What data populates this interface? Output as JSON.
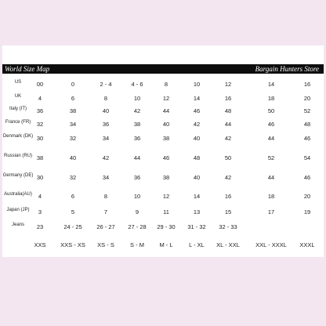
{
  "chart_data": {
    "type": "table",
    "header": {
      "left": "World Size Map",
      "right": "Bargain Hunters Store"
    },
    "rows": [
      {
        "label": "US",
        "values": [
          "00",
          "0",
          "2 - 4",
          "4 - 6",
          "8",
          "10",
          "12",
          "14",
          "16"
        ]
      },
      {
        "label": "UK",
        "values": [
          "4",
          "6",
          "8",
          "10",
          "12",
          "14",
          "16",
          "18",
          "20"
        ]
      },
      {
        "label": "Italy (IT)",
        "values": [
          "36",
          "38",
          "40",
          "42",
          "44",
          "46",
          "48",
          "50",
          "52"
        ]
      },
      {
        "label": "France (FR)",
        "values": [
          "32",
          "34",
          "36",
          "38",
          "40",
          "42",
          "44",
          "46",
          "48"
        ]
      },
      {
        "label": "Denmark (DK)",
        "values": [
          "30",
          "32",
          "34",
          "36",
          "38",
          "40",
          "42",
          "44",
          "46"
        ]
      },
      {
        "label": "Russian (RU)",
        "values": [
          "38",
          "40",
          "42",
          "44",
          "46",
          "48",
          "50",
          "52",
          "54"
        ]
      },
      {
        "label": "Germany (DE)",
        "values": [
          "30",
          "32",
          "34",
          "36",
          "38",
          "40",
          "42",
          "44",
          "46"
        ]
      },
      {
        "label": "Australia(AU)",
        "values": [
          "4",
          "6",
          "8",
          "10",
          "12",
          "14",
          "16",
          "18",
          "20"
        ]
      },
      {
        "label": "Japan (JP)",
        "values": [
          "3",
          "5",
          "7",
          "9",
          "11",
          "13",
          "15",
          "17",
          "19"
        ]
      },
      {
        "label": "Jeans",
        "values": [
          "23",
          "24 - 25",
          "26 - 27",
          "27 - 28",
          "29 - 30",
          "31 - 32",
          "32 - 33",
          "",
          ""
        ]
      }
    ],
    "sizes": [
      "XXS",
      "XXS - XS",
      "XS - S",
      "S - M",
      "M - L",
      "L - XL",
      "XL - XXL",
      "XXL - XXXL",
      "XXXL"
    ]
  }
}
